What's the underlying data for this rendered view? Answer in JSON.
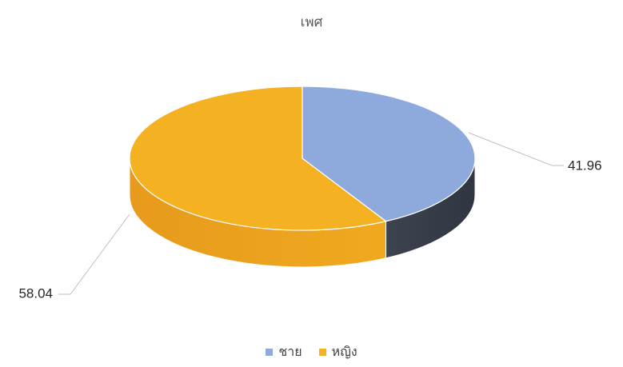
{
  "chart_data": {
    "type": "pie",
    "title": "เพศ",
    "categories": [
      "ชาย",
      "หญิง"
    ],
    "values": [
      41.96,
      58.04
    ],
    "data_labels": [
      "41.96",
      "58.04"
    ],
    "colors": [
      "#8ea9db",
      "#f4b122"
    ],
    "side_colors": [
      "#3d4450",
      "#e79a1c"
    ],
    "legend_position": "bottom",
    "style": "3d",
    "series": [
      {
        "name": "ชาย",
        "value": 41.96,
        "color": "#8ea9db"
      },
      {
        "name": "หญิง",
        "value": 58.04,
        "color": "#f4b122"
      }
    ]
  }
}
